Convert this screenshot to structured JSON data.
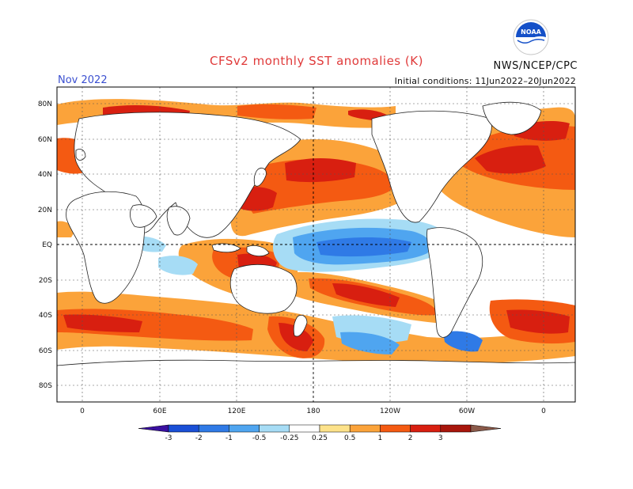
{
  "title": "CFSv2 monthly SST anomalies (K)",
  "forecast_month": "Nov 2022",
  "initial_conditions": "Initial conditions: 11Jun2022–20Jun2022",
  "agency": "NWS/NCEP/CPC",
  "logo_text": "NOAA",
  "lat_labels": [
    "80N",
    "60N",
    "40N",
    "20N",
    "EQ",
    "20S",
    "40S",
    "60S",
    "80S"
  ],
  "lon_labels": [
    "0",
    "60E",
    "120E",
    "180",
    "120W",
    "60W",
    "0"
  ],
  "colorbar": {
    "labels": [
      "-3",
      "-2",
      "-1",
      "-0.5",
      "-0.25",
      "0.25",
      "0.5",
      "1",
      "2",
      "3"
    ],
    "colors": [
      "#3a10a0",
      "#1a4fd6",
      "#2f7ae6",
      "#4fa5f0",
      "#a6dcf5",
      "#ffffff",
      "#fde28a",
      "#fba33a",
      "#f45a12",
      "#d81f10",
      "#a8160c",
      "#8a5a4a"
    ]
  },
  "colors": {
    "title": "#e03a3a",
    "month": "#3a4fd0",
    "noaa_blue": "#1450c8"
  }
}
